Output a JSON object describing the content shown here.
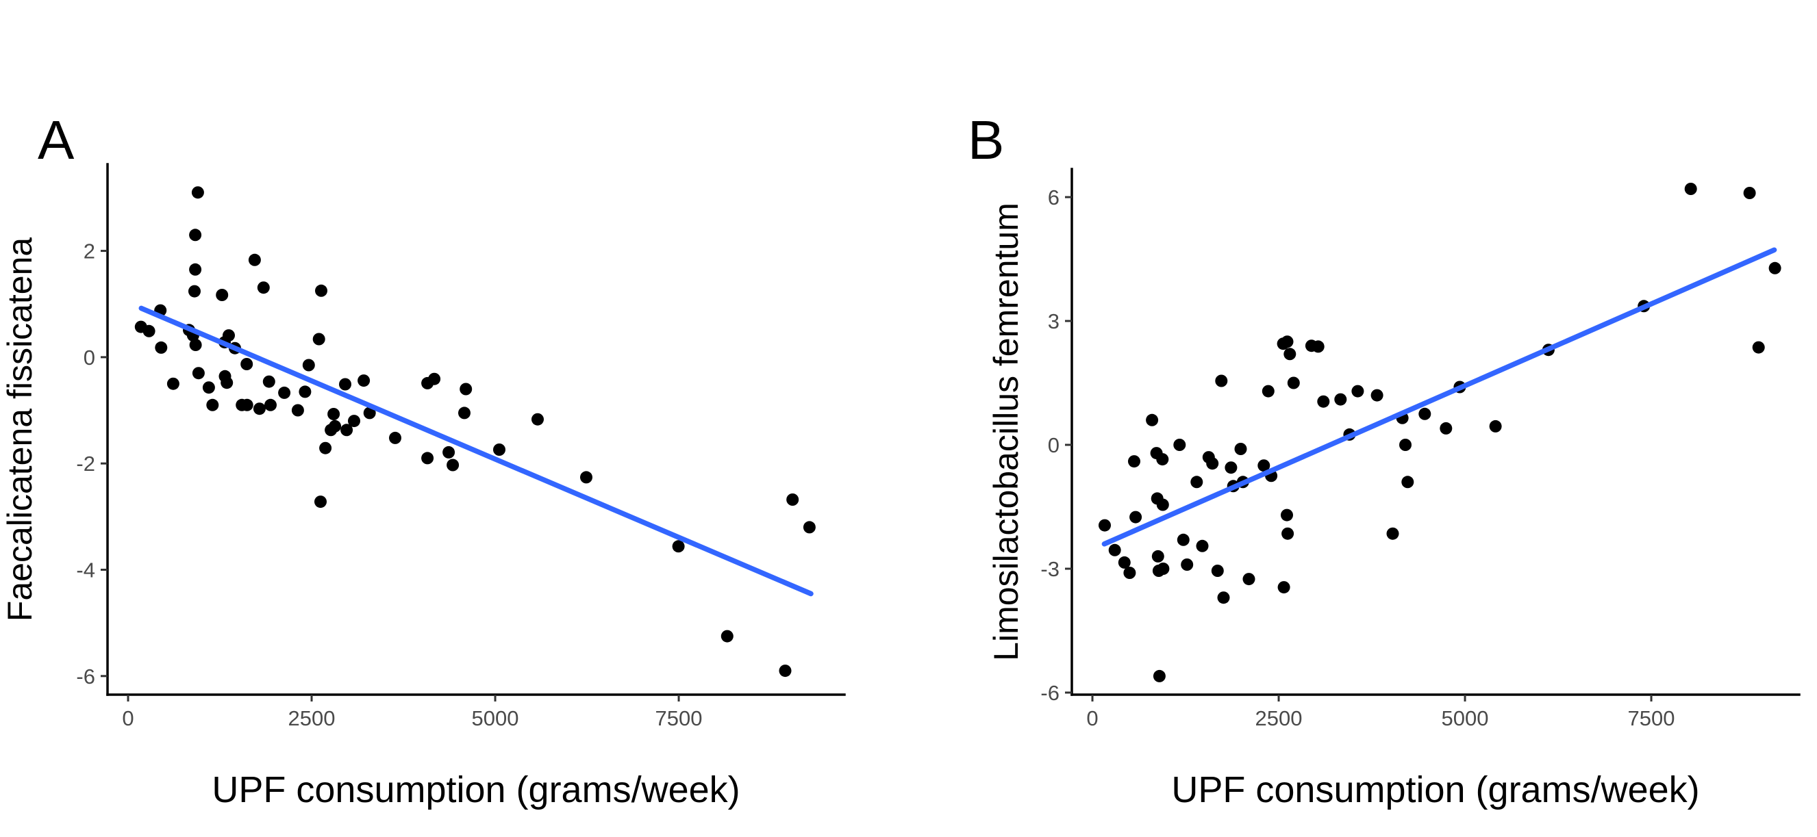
{
  "figure": {
    "background": "#ffffff",
    "colors": {
      "point": "#000000",
      "trend": "#3366FF",
      "axis_line": "#000000",
      "tick_mark": "#333333",
      "tick_label": "#4a4a4a",
      "text": "#000000"
    }
  },
  "chart_data": [
    {
      "type": "scatter",
      "tag": "A",
      "title": "",
      "xlabel": "UPF consumption (grams/week)",
      "ylabel": "Faecalicatena fissicatena",
      "x_ticks": [
        0,
        2500,
        5000,
        7500
      ],
      "y_ticks": [
        2,
        0,
        -2,
        -4,
        -6
      ],
      "xlim": [
        -280,
        9757
      ],
      "ylim": [
        -6.35,
        3.63
      ],
      "grid": false,
      "legend": false,
      "trend_line": {
        "x": [
          180,
          9300
        ],
        "y": [
          0.92,
          -4.45
        ]
      },
      "points": [
        [
          175,
          0.57
        ],
        [
          285,
          0.49
        ],
        [
          440,
          0.88
        ],
        [
          450,
          0.18
        ],
        [
          615,
          -0.5
        ],
        [
          830,
          0.51
        ],
        [
          885,
          0.41
        ],
        [
          905,
          1.24
        ],
        [
          915,
          2.3
        ],
        [
          915,
          1.65
        ],
        [
          920,
          0.23
        ],
        [
          950,
          3.1
        ],
        [
          960,
          -0.3
        ],
        [
          1100,
          -0.57
        ],
        [
          1150,
          -0.9
        ],
        [
          1280,
          1.17
        ],
        [
          1315,
          0.28
        ],
        [
          1320,
          -0.36
        ],
        [
          1345,
          -0.48
        ],
        [
          1371,
          0.41
        ],
        [
          1455,
          0.17
        ],
        [
          1550,
          -0.9
        ],
        [
          1615,
          -0.13
        ],
        [
          1620,
          -0.9
        ],
        [
          1725,
          1.83
        ],
        [
          1790,
          -0.97
        ],
        [
          1845,
          1.31
        ],
        [
          1920,
          -0.46
        ],
        [
          1940,
          -0.9
        ],
        [
          2128,
          -0.67
        ],
        [
          2312,
          -1.0
        ],
        [
          2410,
          -0.65
        ],
        [
          2461,
          -0.15
        ],
        [
          2600,
          0.34
        ],
        [
          2621,
          -2.72
        ],
        [
          2630,
          1.25
        ],
        [
          2687,
          -1.71
        ],
        [
          2762,
          -1.37
        ],
        [
          2799,
          -1.07
        ],
        [
          2818,
          -1.3
        ],
        [
          2957,
          -0.51
        ],
        [
          2976,
          -1.37
        ],
        [
          3078,
          -1.2
        ],
        [
          3210,
          -0.44
        ],
        [
          3290,
          -1.05
        ],
        [
          3638,
          -1.52
        ],
        [
          4077,
          -0.49
        ],
        [
          4077,
          -1.9
        ],
        [
          4170,
          -0.41
        ],
        [
          4366,
          -1.79
        ],
        [
          4422,
          -2.03
        ],
        [
          4580,
          -1.05
        ],
        [
          4600,
          -0.6
        ],
        [
          5056,
          -1.74
        ],
        [
          5578,
          -1.17
        ],
        [
          6240,
          -2.26
        ],
        [
          7496,
          -3.56
        ],
        [
          8160,
          -5.25
        ],
        [
          8950,
          -5.9
        ],
        [
          9050,
          -2.68
        ],
        [
          9280,
          -3.2
        ]
      ]
    },
    {
      "type": "scatter",
      "tag": "B",
      "title": "",
      "xlabel": "UPF consumption (grams/week)",
      "ylabel": "Limosilactobacillus femrentum",
      "x_ticks": [
        0,
        2500,
        5000,
        7500
      ],
      "y_ticks": [
        6,
        3,
        0,
        -3,
        -6
      ],
      "xlim": [
        -276,
        9485
      ],
      "ylim": [
        -6.05,
        6.68
      ],
      "grid": false,
      "legend": false,
      "trend_line": {
        "x": [
          160,
          9150
        ],
        "y": [
          -2.4,
          4.72
        ]
      },
      "points": [
        [
          165,
          -1.95
        ],
        [
          300,
          -2.55
        ],
        [
          430,
          -2.85
        ],
        [
          500,
          -3.1
        ],
        [
          560,
          -0.4
        ],
        [
          580,
          -1.75
        ],
        [
          800,
          0.6
        ],
        [
          860,
          -0.2
        ],
        [
          870,
          -1.3
        ],
        [
          880,
          -2.7
        ],
        [
          890,
          -3.05
        ],
        [
          900,
          -5.6
        ],
        [
          940,
          -0.35
        ],
        [
          945,
          -1.45
        ],
        [
          950,
          -3.0
        ],
        [
          1170,
          0.0
        ],
        [
          1220,
          -2.3
        ],
        [
          1270,
          -2.9
        ],
        [
          1400,
          -0.9
        ],
        [
          1475,
          -2.45
        ],
        [
          1560,
          -0.3
        ],
        [
          1610,
          -0.45
        ],
        [
          1680,
          -3.05
        ],
        [
          1730,
          1.55
        ],
        [
          1760,
          -3.7
        ],
        [
          1860,
          -0.55
        ],
        [
          1890,
          -1.0
        ],
        [
          1990,
          -0.1
        ],
        [
          2020,
          -0.9
        ],
        [
          2100,
          -3.25
        ],
        [
          2300,
          -0.5
        ],
        [
          2360,
          1.3
        ],
        [
          2400,
          -0.75
        ],
        [
          2560,
          2.45
        ],
        [
          2570,
          -3.45
        ],
        [
          2610,
          -1.7
        ],
        [
          2615,
          2.5
        ],
        [
          2620,
          -2.15
        ],
        [
          2650,
          2.2
        ],
        [
          2700,
          1.5
        ],
        [
          2940,
          2.4
        ],
        [
          3030,
          2.38
        ],
        [
          3100,
          1.05
        ],
        [
          3330,
          1.1
        ],
        [
          3450,
          0.25
        ],
        [
          3560,
          1.3
        ],
        [
          3820,
          1.2
        ],
        [
          4030,
          -2.15
        ],
        [
          4160,
          0.65
        ],
        [
          4200,
          0.0
        ],
        [
          4230,
          -0.9
        ],
        [
          4460,
          0.75
        ],
        [
          4745,
          0.4
        ],
        [
          4930,
          1.4
        ],
        [
          5410,
          0.45
        ],
        [
          6120,
          2.3
        ],
        [
          7400,
          3.36
        ],
        [
          8030,
          6.2
        ],
        [
          8820,
          6.1
        ],
        [
          8940,
          2.36
        ],
        [
          9160,
          4.28
        ]
      ]
    }
  ]
}
